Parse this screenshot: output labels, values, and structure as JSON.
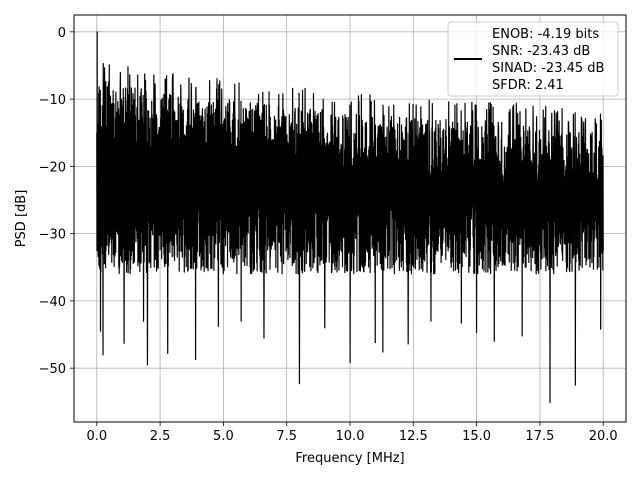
{
  "chart_data": {
    "type": "line",
    "title": "",
    "xlabel": "Frequency [MHz]",
    "ylabel": "PSD [dB]",
    "xlim": [
      -0.9,
      20.9
    ],
    "ylim": [
      -58,
      2.5
    ],
    "xticks": [
      0.0,
      2.5,
      5.0,
      7.5,
      10.0,
      12.5,
      15.0,
      17.5,
      20.0
    ],
    "xtick_labels": [
      "0.0",
      "2.5",
      "5.0",
      "7.5",
      "10.0",
      "12.5",
      "15.0",
      "17.5",
      "20.0"
    ],
    "yticks": [
      0,
      -10,
      -20,
      -30,
      -40,
      -50
    ],
    "ytick_labels": [
      "0",
      "−10",
      "−20",
      "−30",
      "−40",
      "−50"
    ],
    "grid": true,
    "legend_position": "top-right",
    "series": [
      {
        "name": "",
        "color": "#000000",
        "legend_lines": [
          "ENOB: -4.19 bits",
          "SNR: -23.43 dB",
          "SINAD: -23.45 dB",
          "SFDR: 2.41"
        ],
        "x_range": [
          0,
          20
        ],
        "peak": {
          "x": 0.0,
          "y": 0
        },
        "envelope_top": [
          [
            0.0,
            -5
          ],
          [
            2.5,
            -7
          ],
          [
            5.0,
            -8
          ],
          [
            7.5,
            -9
          ],
          [
            10.0,
            -10
          ],
          [
            12.5,
            -10.5
          ],
          [
            15.0,
            -11
          ],
          [
            17.5,
            -12
          ],
          [
            20.0,
            -13
          ]
        ],
        "envelope_bottom_typical": -32,
        "deep_nulls": [
          {
            "x": 0.15,
            "y": -44.5
          },
          {
            "x": 0.25,
            "y": -48
          },
          {
            "x": 1.08,
            "y": -46.3
          },
          {
            "x": 1.85,
            "y": -43
          },
          {
            "x": 2.0,
            "y": -49.5
          },
          {
            "x": 2.8,
            "y": -47.8
          },
          {
            "x": 3.9,
            "y": -48.7
          },
          {
            "x": 4.8,
            "y": -43.8
          },
          {
            "x": 5.7,
            "y": -43
          },
          {
            "x": 6.6,
            "y": -45.5
          },
          {
            "x": 8.0,
            "y": -52.3
          },
          {
            "x": 9.0,
            "y": -44
          },
          {
            "x": 10.0,
            "y": -49.2
          },
          {
            "x": 11.0,
            "y": -46.2
          },
          {
            "x": 11.3,
            "y": -47.6
          },
          {
            "x": 12.3,
            "y": -46.4
          },
          {
            "x": 13.2,
            "y": -43
          },
          {
            "x": 14.4,
            "y": -43.3
          },
          {
            "x": 15.0,
            "y": -44.7
          },
          {
            "x": 15.7,
            "y": -46
          },
          {
            "x": 16.8,
            "y": -45.2
          },
          {
            "x": 17.9,
            "y": -55.1
          },
          {
            "x": 18.9,
            "y": -52.5
          },
          {
            "x": 19.9,
            "y": -44.2
          }
        ]
      }
    ]
  }
}
